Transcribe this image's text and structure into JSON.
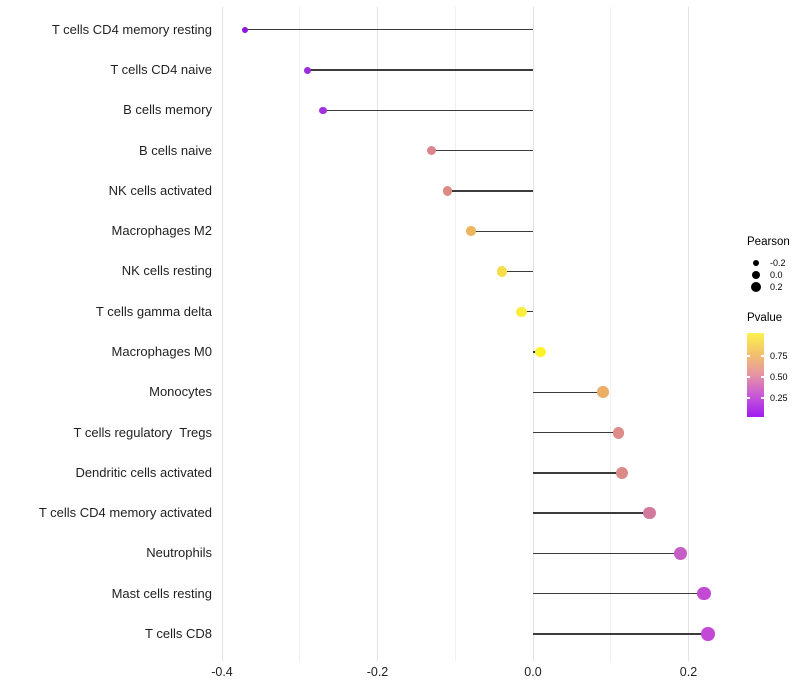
{
  "figure": {
    "background": "#ffffff",
    "panel_background": "#ffffff",
    "stem_color": "#3b3b3b",
    "gridline_major_color": "#e3e3e3",
    "gridline_minor_color": "#f0f0f0"
  },
  "chart_data": {
    "type": "scatter",
    "variant": "horizontal lollipop (stems from 0 to point)",
    "title": "",
    "xlabel": "",
    "ylabel": "",
    "xlim": [
      -0.45,
      0.31
    ],
    "x_tick_values": [
      -0.4,
      -0.2,
      0.0,
      0.2
    ],
    "x_tick_labels": [
      "-0.4",
      "-0.2",
      "0.0",
      "0.2"
    ],
    "x_minor_gridlines": [
      -0.3,
      -0.1,
      0.1
    ],
    "grid": "vertical gridlines only, light gray on white panel",
    "legend_position": "right",
    "size_encoding": "Pearson correlation (larger = higher value)",
    "color_encoding": "Pvalue (yellow = high, purple = low)",
    "points": [
      {
        "label": "T cells CD4 memory resting",
        "pearson": -0.37,
        "pvalue_est": 0.03,
        "color": "#8E17DE"
      },
      {
        "label": "T cells CD4 naive",
        "pearson": -0.29,
        "pvalue_est": 0.1,
        "color": "#9C2BDC"
      },
      {
        "label": "B cells memory",
        "pearson": -0.27,
        "pvalue_est": 0.13,
        "color": "#A132DE"
      },
      {
        "label": "B cells naive",
        "pearson": -0.13,
        "pvalue_est": 0.48,
        "color": "#DB8490"
      },
      {
        "label": "NK cells activated",
        "pearson": -0.11,
        "pvalue_est": 0.55,
        "color": "#DD8A85"
      },
      {
        "label": "Macrophages M2",
        "pearson": -0.08,
        "pvalue_est": 0.7,
        "color": "#EEB55F"
      },
      {
        "label": "NK cells resting",
        "pearson": -0.04,
        "pvalue_est": 0.85,
        "color": "#F8DC49"
      },
      {
        "label": "T cells gamma delta",
        "pearson": -0.015,
        "pvalue_est": 0.92,
        "color": "#FCEC3B"
      },
      {
        "label": "Macrophages M0",
        "pearson": 0.01,
        "pvalue_est": 0.96,
        "color": "#FDF32C"
      },
      {
        "label": "Monocytes",
        "pearson": 0.09,
        "pvalue_est": 0.66,
        "color": "#ECAD66"
      },
      {
        "label": "T cells regulatory  Tregs",
        "pearson": 0.11,
        "pvalue_est": 0.56,
        "color": "#DD8B8B"
      },
      {
        "label": "Dendritic cells activated",
        "pearson": 0.115,
        "pvalue_est": 0.55,
        "color": "#DC8A88"
      },
      {
        "label": "T cells CD4 memory activated",
        "pearson": 0.15,
        "pvalue_est": 0.42,
        "color": "#D4799E"
      },
      {
        "label": "Neutrophils",
        "pearson": 0.19,
        "pvalue_est": 0.29,
        "color": "#C75EC6"
      },
      {
        "label": "Mast cells resting",
        "pearson": 0.22,
        "pvalue_est": 0.24,
        "color": "#C44AD4"
      },
      {
        "label": "T cells CD8",
        "pearson": 0.225,
        "pvalue_est": 0.23,
        "color": "#C348D8"
      }
    ],
    "legend": {
      "size": {
        "title": "Pearson",
        "entries": [
          "-0.2",
          "0.0",
          "0.2"
        ],
        "dot_color": "#000000"
      },
      "color": {
        "title": "Pvalue",
        "tick_labels": [
          "0.75",
          "0.50",
          "0.25"
        ],
        "gradient_top_to_bottom": [
          "#FCF14E",
          "#F3C16C",
          "#E593A4",
          "#C757D8",
          "#A01BF0"
        ]
      }
    }
  }
}
